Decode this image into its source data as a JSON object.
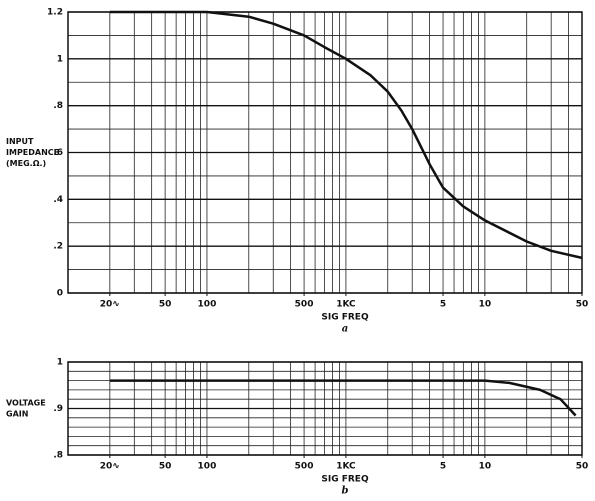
{
  "chart_data": [
    {
      "type": "line",
      "ylabel": [
        "INPUT",
        "IMPEDANCE",
        "(MEG.Ω.)"
      ],
      "xlabel": "SIG FREQ",
      "caption": "a",
      "log_x": true,
      "grid": true,
      "color": "#111111",
      "xlim": [
        10,
        50000
      ],
      "xticks": [
        {
          "value": 20,
          "label": "20∿"
        },
        50,
        100,
        500,
        {
          "value": 1000,
          "label": "1KC"
        },
        {
          "value": 5000,
          "label": "5"
        },
        {
          "value": 10000,
          "label": "10"
        },
        {
          "value": 50000,
          "label": "50"
        }
      ],
      "xgrid": [
        10,
        20,
        30,
        40,
        50,
        60,
        70,
        80,
        90,
        100,
        200,
        300,
        400,
        500,
        600,
        700,
        800,
        900,
        1000,
        2000,
        3000,
        4000,
        5000,
        6000,
        7000,
        8000,
        9000,
        10000,
        20000,
        30000,
        40000,
        50000
      ],
      "ylim": [
        0,
        1.2
      ],
      "yticks": [
        0,
        {
          "value": 0.2,
          "label": ".2"
        },
        {
          "value": 0.4,
          "label": ".4"
        },
        {
          "value": 0.6,
          "label": ".6"
        },
        {
          "value": 0.8,
          "label": ".8"
        },
        1,
        1.2
      ],
      "ygrid": [
        0.1,
        0.3,
        0.5,
        0.7,
        0.9,
        1.1
      ],
      "x": [
        20,
        50,
        100,
        200,
        300,
        500,
        700,
        1000,
        1500,
        2000,
        2500,
        3000,
        4000,
        5000,
        7000,
        10000,
        20000,
        30000,
        50000
      ],
      "values": [
        1.2,
        1.2,
        1.2,
        1.18,
        1.15,
        1.1,
        1.05,
        1.0,
        0.93,
        0.86,
        0.78,
        0.7,
        0.55,
        0.45,
        0.37,
        0.31,
        0.22,
        0.18,
        0.15
      ]
    },
    {
      "type": "line",
      "ylabel": [
        "VOLTAGE",
        "GAIN"
      ],
      "xlabel": "SIG FREQ",
      "caption": "b",
      "log_x": true,
      "grid": true,
      "color": "#111111",
      "xlim": [
        10,
        50000
      ],
      "xticks": [
        {
          "value": 20,
          "label": "20∿"
        },
        50,
        100,
        500,
        {
          "value": 1000,
          "label": "1KC"
        },
        {
          "value": 5000,
          "label": "5"
        },
        {
          "value": 10000,
          "label": "10"
        },
        {
          "value": 50000,
          "label": "50"
        }
      ],
      "xgrid": [
        10,
        20,
        30,
        40,
        50,
        60,
        70,
        80,
        90,
        100,
        200,
        300,
        400,
        500,
        600,
        700,
        800,
        900,
        1000,
        2000,
        3000,
        4000,
        5000,
        6000,
        7000,
        8000,
        9000,
        10000,
        20000,
        30000,
        40000,
        50000
      ],
      "ylim": [
        0.8,
        1
      ],
      "yticks": [
        {
          "value": 0.8,
          "label": ".8"
        },
        {
          "value": 0.9,
          "label": ".9"
        },
        1
      ],
      "ygrid": [
        0.82,
        0.84,
        0.86,
        0.88,
        0.92,
        0.94,
        0.96,
        0.98
      ],
      "x": [
        20,
        10000,
        15000,
        25000,
        35000,
        45000
      ],
      "values": [
        0.96,
        0.96,
        0.955,
        0.94,
        0.92,
        0.885
      ]
    }
  ]
}
